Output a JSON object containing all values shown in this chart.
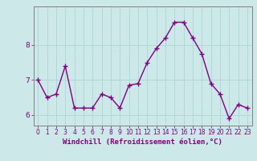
{
  "x": [
    0,
    1,
    2,
    3,
    4,
    5,
    6,
    7,
    8,
    9,
    10,
    11,
    12,
    13,
    14,
    15,
    16,
    17,
    18,
    19,
    20,
    21,
    22,
    23
  ],
  "y": [
    7.0,
    6.5,
    6.6,
    7.4,
    6.2,
    6.2,
    6.2,
    6.6,
    6.5,
    6.2,
    6.85,
    6.9,
    7.5,
    7.9,
    8.2,
    8.65,
    8.65,
    8.2,
    7.75,
    6.9,
    6.6,
    5.9,
    6.3,
    6.2
  ],
  "line_color": "#800080",
  "marker": "+",
  "markersize": 4,
  "linewidth": 1.0,
  "xlabel": "Windchill (Refroidissement éolien,°C)",
  "xlabel_fontsize": 6.5,
  "ylim": [
    5.7,
    9.1
  ],
  "xlim": [
    -0.5,
    23.5
  ],
  "yticks": [
    6,
    7,
    8
  ],
  "xticks": [
    0,
    1,
    2,
    3,
    4,
    5,
    6,
    7,
    8,
    9,
    10,
    11,
    12,
    13,
    14,
    15,
    16,
    17,
    18,
    19,
    20,
    21,
    22,
    23
  ],
  "tick_fontsize": 5.5,
  "bg_color": "#cce8e8",
  "grid_color": "#b0d8d8",
  "axes_color": "#800080",
  "spine_color": "#808080"
}
